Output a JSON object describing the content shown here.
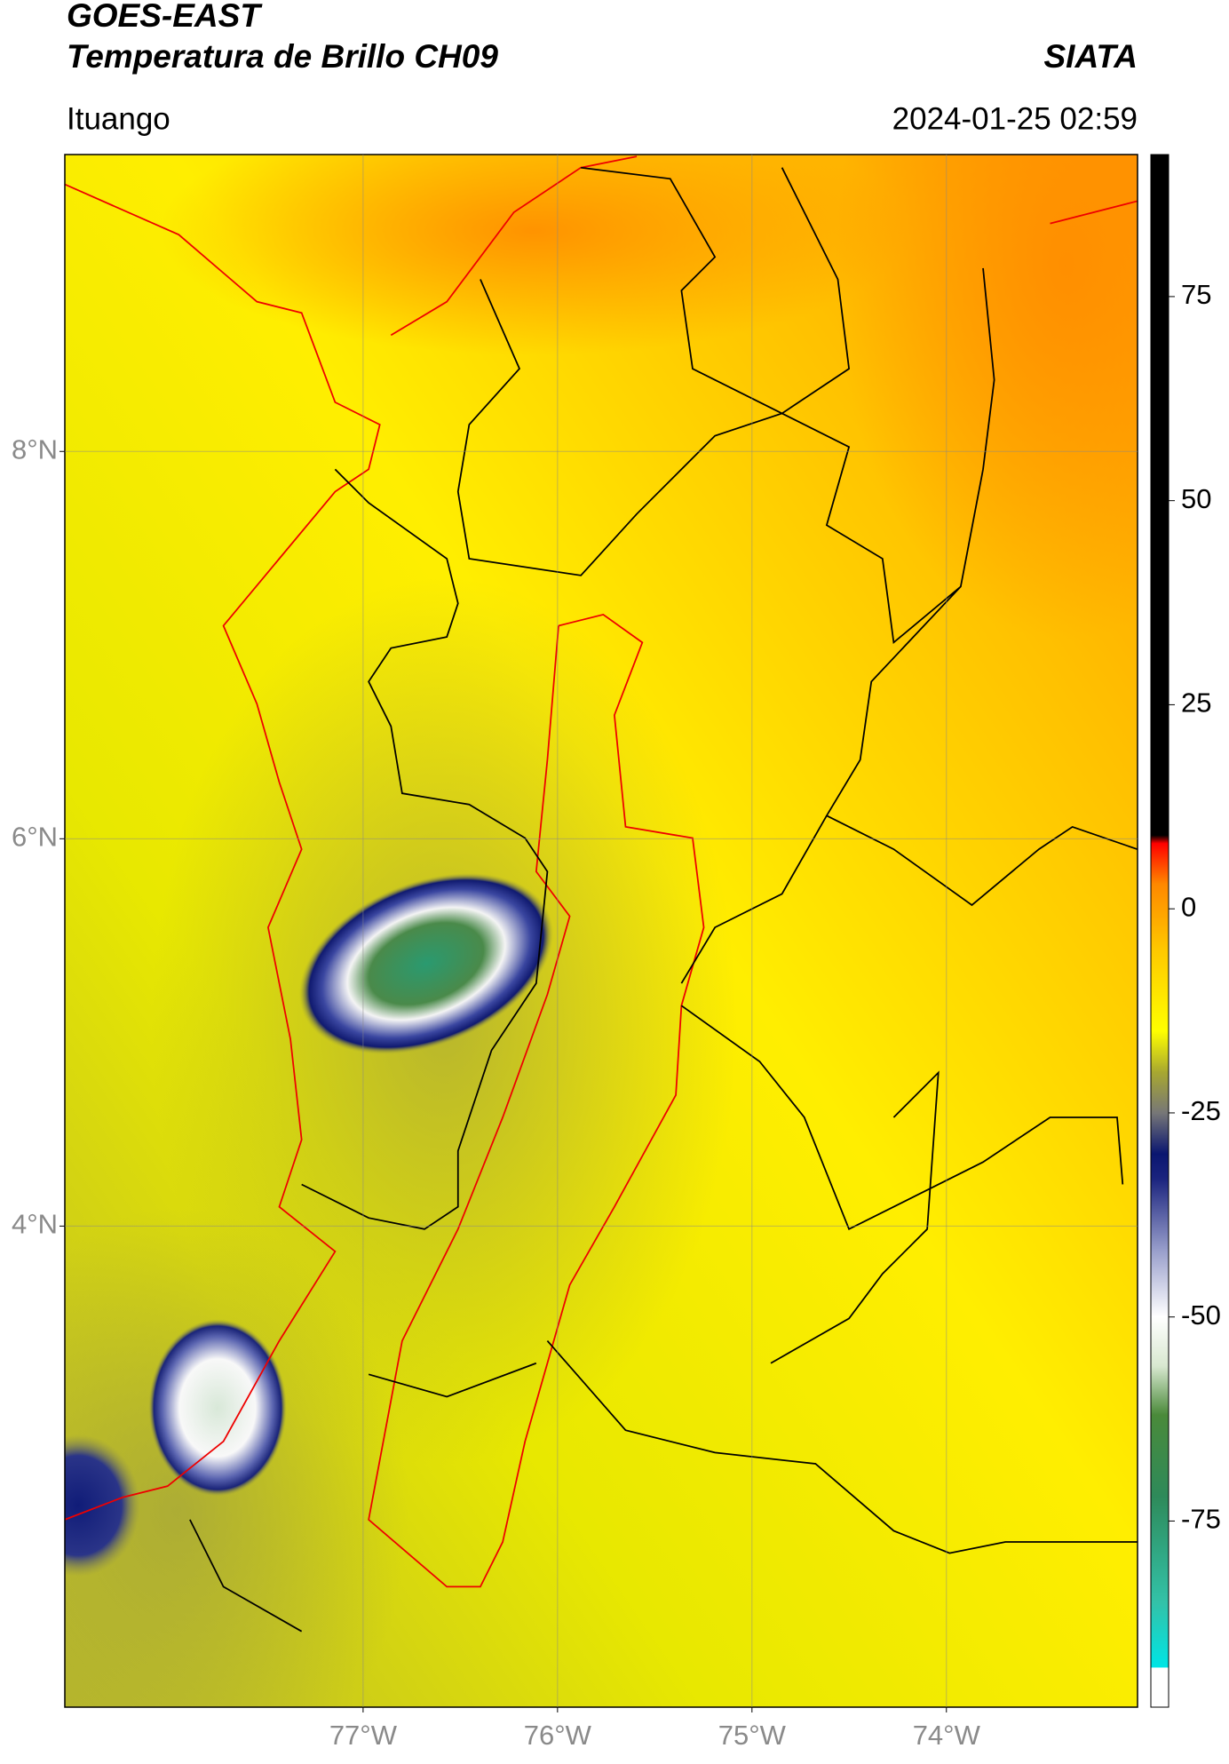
{
  "header": {
    "title": "GOES-EAST",
    "subtitle": "Temperatura de Brillo CH09",
    "brand": "SIATA",
    "location": "Ituango",
    "timestamp": "2024-01-25 02:59"
  },
  "chart_data": {
    "type": "map",
    "xlim": [
      -78.534,
      -73.017
    ],
    "ylim": [
      1.516,
      9.533
    ],
    "xticks": [
      {
        "value": -77,
        "label": "77°W"
      },
      {
        "value": -76,
        "label": "76°W"
      },
      {
        "value": -75,
        "label": "75°W"
      },
      {
        "value": -74,
        "label": "74°W"
      }
    ],
    "yticks": [
      {
        "value": 8,
        "label": "8°N"
      },
      {
        "value": 6,
        "label": "6°N"
      },
      {
        "value": 4,
        "label": "4°N"
      }
    ],
    "grid": true,
    "colorbar": {
      "lim": [
        -97.8,
        92.4
      ],
      "ticks": [
        75,
        50,
        25,
        0,
        -25,
        -50,
        -75
      ],
      "stops": [
        {
          "value": -97.8,
          "color": "#ffffff"
        },
        {
          "value": -93,
          "color": "#ffffff"
        },
        {
          "value": -92.9,
          "color": "#00e5e5"
        },
        {
          "value": -85,
          "color": "#33c2a8"
        },
        {
          "value": -72,
          "color": "#2e8a5a"
        },
        {
          "value": -62,
          "color": "#4a8a3a"
        },
        {
          "value": -56,
          "color": "#d8e8d0"
        },
        {
          "value": -50,
          "color": "#ffffff"
        },
        {
          "value": -42,
          "color": "#9aa0cc"
        },
        {
          "value": -33,
          "color": "#1a237e"
        },
        {
          "value": -30,
          "color": "#0a1670"
        },
        {
          "value": -25,
          "color": "#777777"
        },
        {
          "value": -20,
          "color": "#a8a830"
        },
        {
          "value": -15,
          "color": "#ffff00"
        },
        {
          "value": -5,
          "color": "#ffc800"
        },
        {
          "value": 3,
          "color": "#ff8800"
        },
        {
          "value": 8,
          "color": "#ff0000"
        },
        {
          "value": 9,
          "color": "#000000"
        },
        {
          "value": 92.4,
          "color": "#000000"
        }
      ]
    }
  }
}
